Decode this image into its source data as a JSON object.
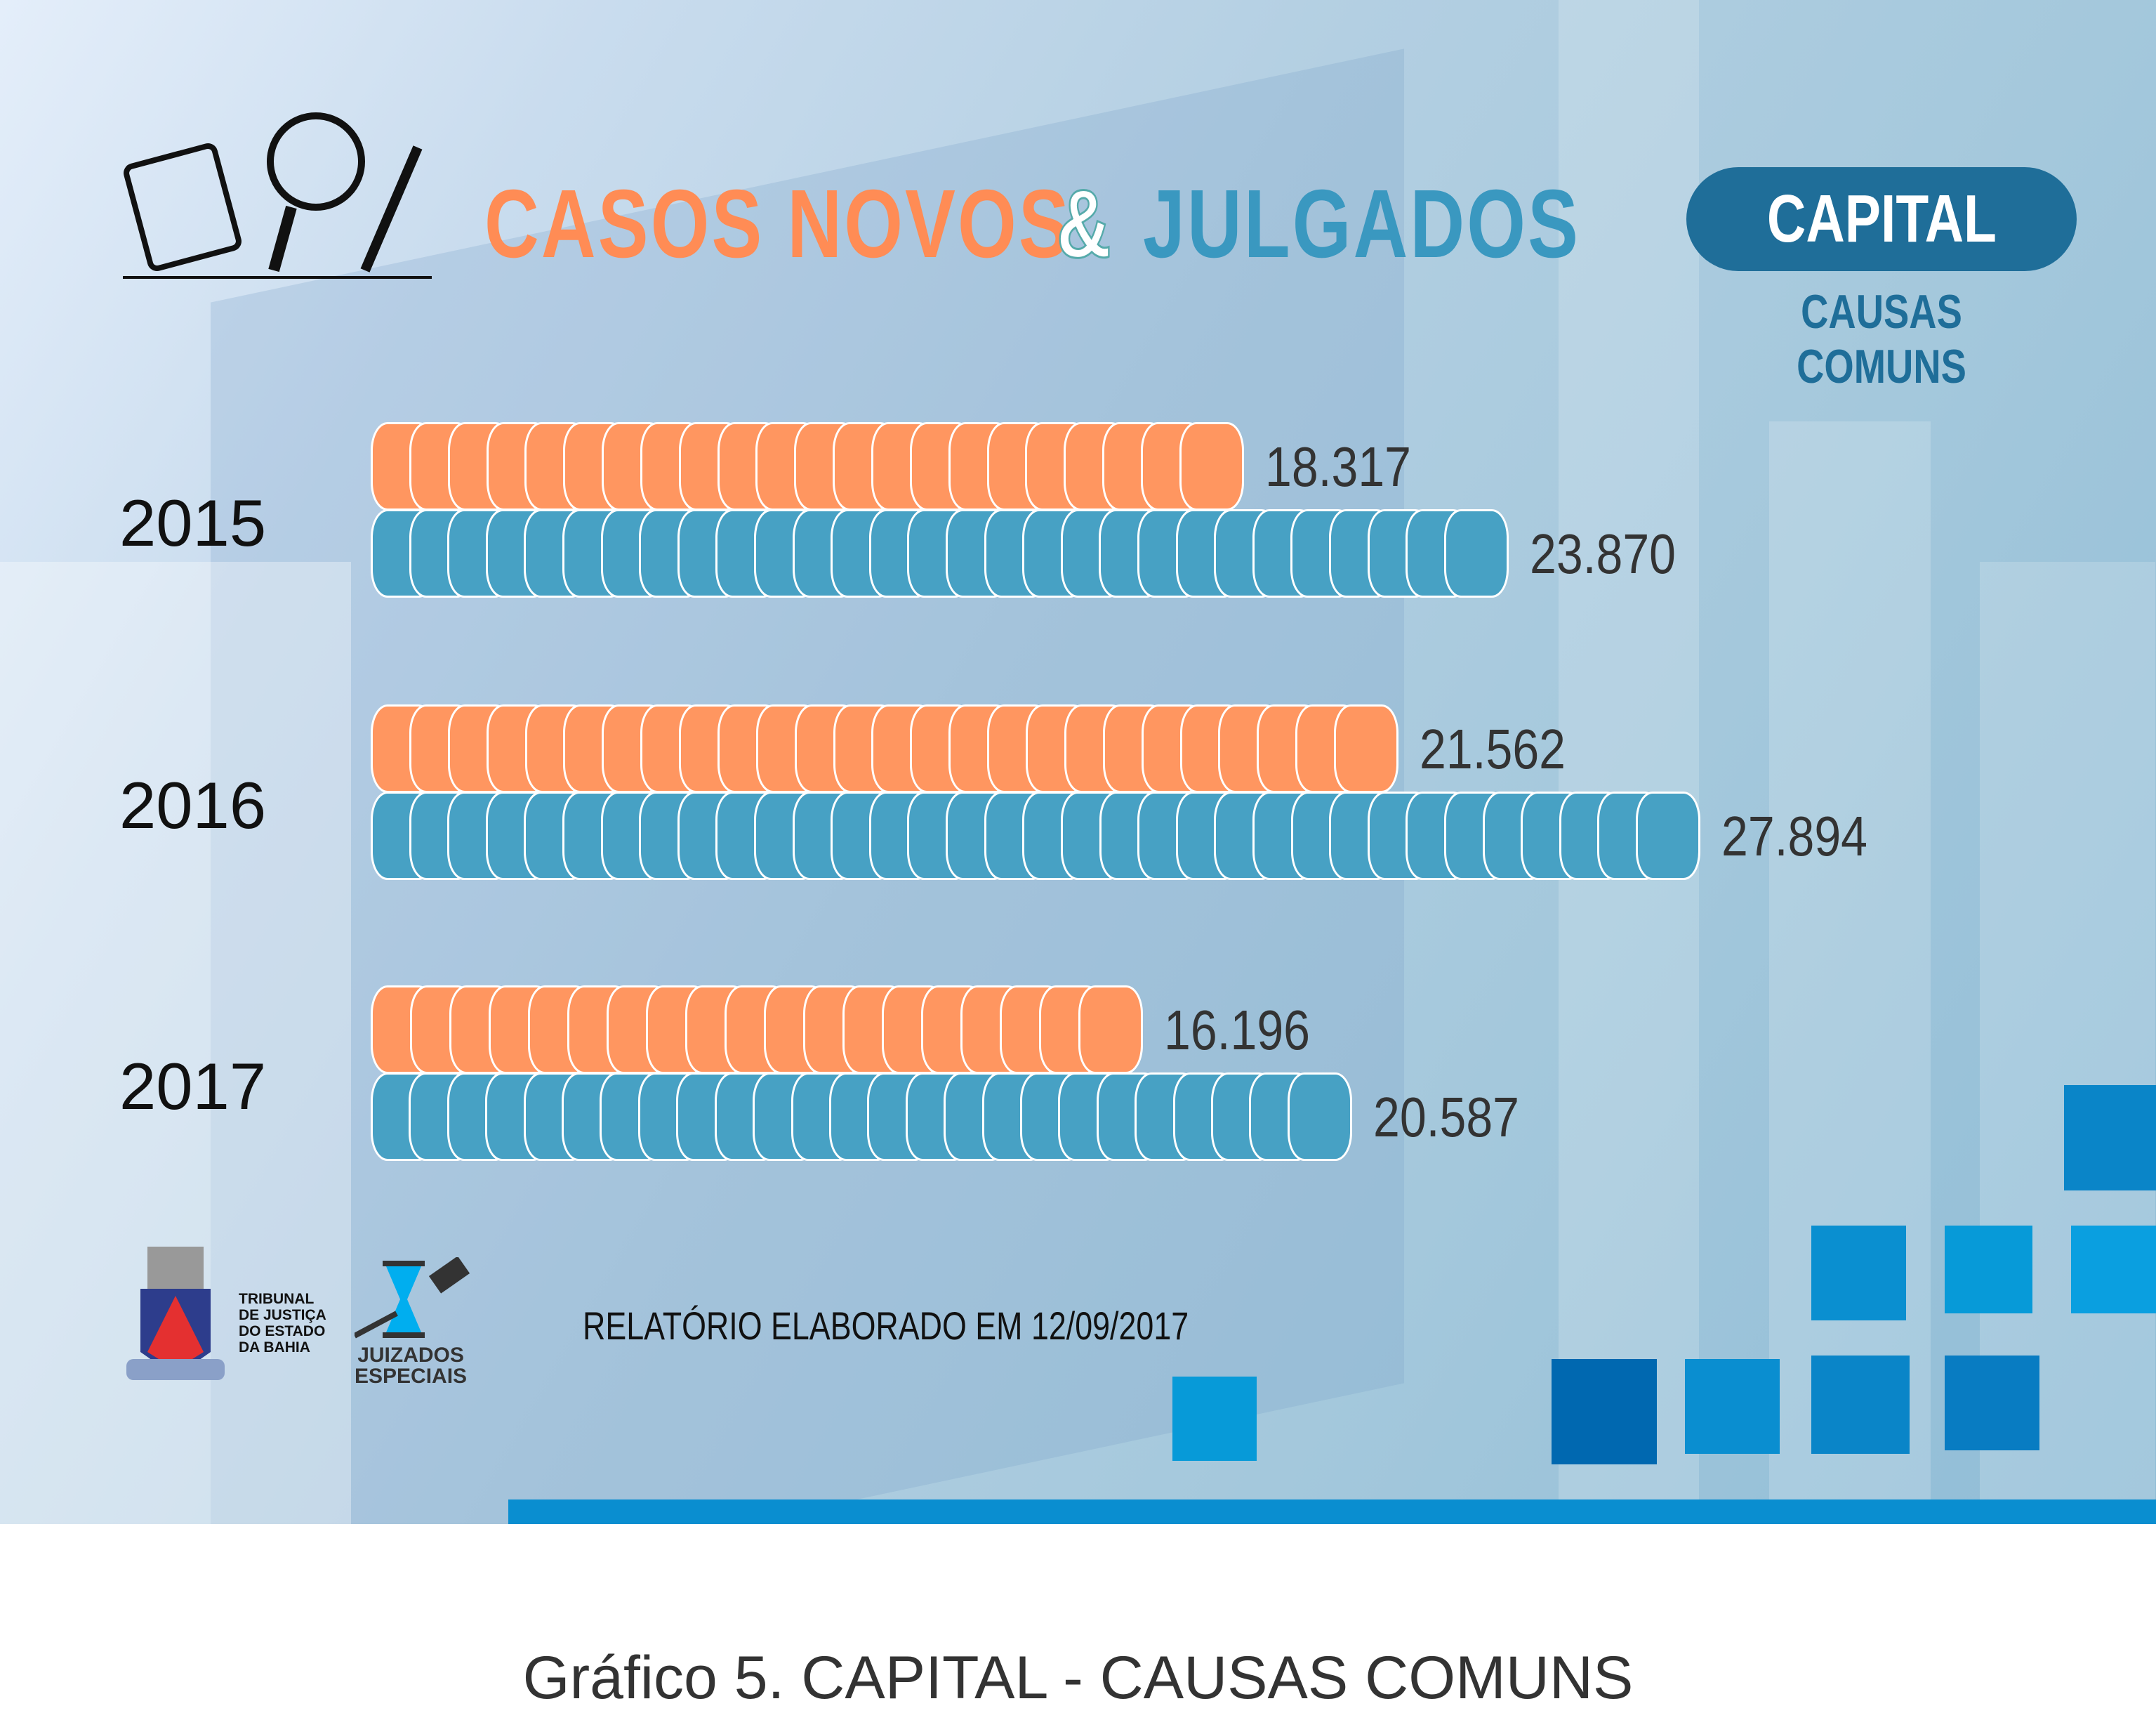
{
  "header": {
    "title_part1": "CASOS NOVOS",
    "title_amp": "&",
    "title_part2": "JULGADOS",
    "badge": "CAPITAL",
    "subtitle": "CAUSAS COMUNS"
  },
  "colors": {
    "casos_novos": "#ff9660",
    "julgados": "#47a1c4",
    "badge": "#1f6e99"
  },
  "chart_data": {
    "type": "bar",
    "orientation": "horizontal",
    "title": "CASOS NOVOS & JULGADOS",
    "categories": [
      "2015",
      "2016",
      "2017"
    ],
    "series": [
      {
        "name": "Casos Novos",
        "values": [
          18317,
          21562,
          16196
        ],
        "labels": [
          "18.317",
          "21.562",
          "16.196"
        ]
      },
      {
        "name": "Julgados",
        "values": [
          23870,
          27894,
          20587
        ],
        "labels": [
          "23.870",
          "27.894",
          "20.587"
        ]
      }
    ],
    "xlim": [
      0,
      28000
    ],
    "grid": false
  },
  "footer": {
    "tj_logo": [
      "TRIBUNAL",
      "DE JUSTIÇA",
      "DO ESTADO",
      "DA BAHIA"
    ],
    "je_logo": [
      "JUIZADOS",
      "ESPECIAIS"
    ],
    "report": "RELATÓRIO ELABORADO EM 12/09/2017"
  },
  "caption": "Gráfico 5. CAPITAL - CAUSAS COMUNS"
}
